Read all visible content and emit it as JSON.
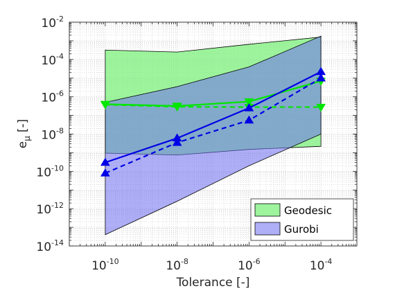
{
  "chart_data": {
    "type": "line",
    "xscale": "log",
    "yscale": "log",
    "xlim": [
      1e-11,
      0.001
    ],
    "ylim": [
      1e-14,
      0.01
    ],
    "xlabel": "Tolerance [-]",
    "ylabel": "e",
    "ylabel_subscript": "μ",
    "ylabel_unit": "[-]",
    "grid": true,
    "minor_grid": true,
    "legend_position": "bottom-right",
    "x_ticks": [
      {
        "base": "10",
        "exp": "-10",
        "value": 1e-10
      },
      {
        "base": "10",
        "exp": "-8",
        "value": 1e-08
      },
      {
        "base": "10",
        "exp": "-6",
        "value": 1e-06
      },
      {
        "base": "10",
        "exp": "-4",
        "value": 0.0001
      }
    ],
    "y_ticks": [
      {
        "base": "10",
        "exp": "-14",
        "value": 1e-14
      },
      {
        "base": "10",
        "exp": "-12",
        "value": 1e-12
      },
      {
        "base": "10",
        "exp": "-10",
        "value": 1e-10
      },
      {
        "base": "10",
        "exp": "-8",
        "value": 1e-08
      },
      {
        "base": "10",
        "exp": "-6",
        "value": 1e-06
      },
      {
        "base": "10",
        "exp": "-4",
        "value": 0.0001
      },
      {
        "base": "10",
        "exp": "-2",
        "value": 0.01
      }
    ],
    "x": [
      1e-10,
      1e-08,
      1e-06,
      0.0001
    ],
    "bands": [
      {
        "name": "Geodesic",
        "color": "#7CF07C",
        "opacity": 0.75,
        "upper": [
          0.00032,
          0.00025,
          0.00065,
          0.0016
        ],
        "lower": [
          9.5e-10,
          7.5e-10,
          1.5e-09,
          2.2e-09
        ]
      },
      {
        "name": "Gurobi",
        "color": "#6E6EF0",
        "opacity": 0.55,
        "upper": [
          5e-07,
          3.5e-06,
          4e-05,
          0.0018
        ],
        "lower": [
          4e-14,
          2.5e-12,
          2e-10,
          1e-08
        ]
      }
    ],
    "series": [
      {
        "color": "#00E600",
        "style": "solid",
        "marker": "triangle-down",
        "values": [
          4e-07,
          3.2e-07,
          5.5e-07,
          7e-06
        ]
      },
      {
        "color": "#00E600",
        "style": "dashed",
        "marker": "triangle-down",
        "values": [
          3.8e-07,
          2.9e-07,
          2.8e-07,
          2.8e-07
        ]
      },
      {
        "color": "#0000E6",
        "style": "solid",
        "marker": "triangle-up",
        "values": [
          3e-10,
          6e-09,
          2.5e-07,
          2.2e-05
        ]
      },
      {
        "color": "#0000E6",
        "style": "dashed",
        "marker": "triangle-up",
        "values": [
          8e-11,
          3.5e-09,
          5.5e-08,
          1e-05
        ]
      }
    ]
  }
}
